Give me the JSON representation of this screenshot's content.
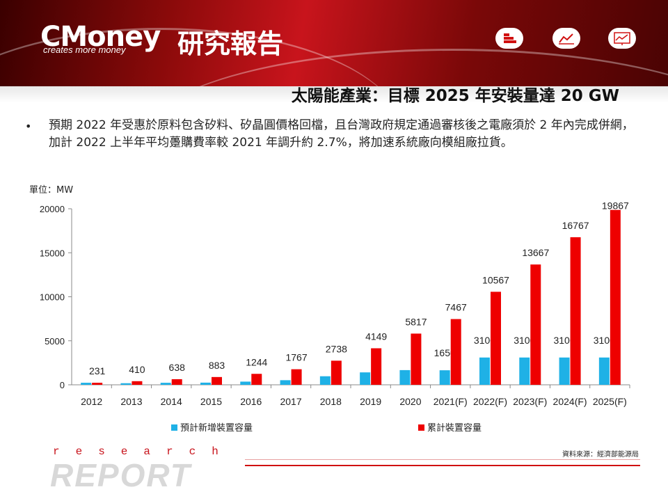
{
  "header": {
    "logo_text": "CMoney",
    "logo_cn": "研究報告",
    "tagline": "creates more money",
    "icons": [
      "bar-list-icon",
      "line-chart-icon",
      "monitor-chart-icon"
    ]
  },
  "slide_title": "太陽能產業：目標 2025 年安裝量達 20 GW",
  "bullet": "預期 2022 年受惠於原料包含矽料、矽晶圓價格回檔，且台灣政府規定通過審核後之電廠須於 2 年內完成併網，加計 2022 上半年平均躉購費率較 2021 年調升約 2.7%，將加速系統廠向模組廠拉貨。",
  "unit_label": "單位：MW",
  "chart_data": {
    "type": "bar",
    "categories": [
      "2012",
      "2013",
      "2014",
      "2015",
      "2016",
      "2017",
      "2018",
      "2019",
      "2020",
      "2021(F)",
      "2022(F)",
      "2023(F)",
      "2024(F)",
      "2025(F)"
    ],
    "series": [
      {
        "name": "預計新增裝置容量",
        "color": "#1fb1e6",
        "values": [
          231,
          179,
          228,
          245,
          361,
          523,
          971,
          1411,
          1668,
          1650,
          3100,
          3100,
          3100,
          3100
        ],
        "labels": [
          null,
          null,
          null,
          null,
          null,
          null,
          null,
          null,
          null,
          "1650",
          "3100",
          "3100",
          "3100",
          "3100"
        ]
      },
      {
        "name": "累計裝置容量",
        "color": "#ee0000",
        "values": [
          231,
          410,
          638,
          883,
          1244,
          1767,
          2738,
          4149,
          5817,
          7467,
          10567,
          13667,
          16767,
          19867
        ],
        "labels": [
          "231",
          "410",
          "638",
          "883",
          "1244",
          "1767",
          "2738",
          "4149",
          "5817",
          "7467",
          "10567",
          "13667",
          "16767",
          "19867"
        ]
      }
    ],
    "ylim": [
      0,
      20000
    ],
    "yticks": [
      0,
      5000,
      10000,
      15000,
      20000
    ],
    "grid": false,
    "legend_position": "bottom"
  },
  "source": "資料來源：經濟部能源局",
  "footer": {
    "research": "research",
    "report": "REPORT"
  }
}
